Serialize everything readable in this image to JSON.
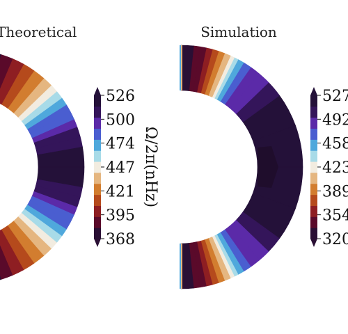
{
  "figure": {
    "cbar_label": "Ω/2π(nHz)"
  },
  "palette": [
    "#2a0f34",
    "#5a0a2a",
    "#8e1e22",
    "#b54a1c",
    "#d27d2f",
    "#e5b680",
    "#f2ece0",
    "#a8dbe8",
    "#4fa8dc",
    "#4a5ed0",
    "#5b2aa8",
    "#34155a",
    "#241139"
  ],
  "chart_data": [
    {
      "type": "heatmap",
      "title": "Theoretical",
      "subtype": "polar-contour",
      "r_range": [
        0.55,
        1.0
      ],
      "latitude_range_deg": [
        -90,
        90
      ],
      "bands": [
        {
          "lat_min": 0,
          "lat_max": 10,
          "value": 520
        },
        {
          "lat_min": 10,
          "lat_max": 15,
          "value": 513
        },
        {
          "lat_min": 15,
          "lat_max": 20,
          "value": 505
        },
        {
          "lat_min": 20,
          "lat_max": 24,
          "value": 497
        },
        {
          "lat_min": 24,
          "lat_max": 28,
          "value": 489
        },
        {
          "lat_min": 28,
          "lat_max": 32,
          "value": 480
        },
        {
          "lat_min": 32,
          "lat_max": 36,
          "value": 470
        },
        {
          "lat_min": 36,
          "lat_max": 40,
          "value": 460
        },
        {
          "lat_min": 40,
          "lat_max": 44,
          "value": 450
        },
        {
          "lat_min": 44,
          "lat_max": 49,
          "value": 438
        },
        {
          "lat_min": 49,
          "lat_max": 55,
          "value": 425
        },
        {
          "lat_min": 55,
          "lat_max": 61,
          "value": 412
        },
        {
          "lat_min": 61,
          "lat_max": 67,
          "value": 400
        },
        {
          "lat_min": 67,
          "lat_max": 73,
          "value": 388
        },
        {
          "lat_min": 73,
          "lat_max": 80,
          "value": 378
        },
        {
          "lat_min": 80,
          "lat_max": 90,
          "value": 370
        }
      ],
      "colorbar": {
        "vmin": 368,
        "vmax": 526,
        "ticks": [
          "368",
          "395",
          "421",
          "447",
          "474",
          "500",
          "526"
        ],
        "label": "Ω/2π(nHz)"
      }
    },
    {
      "type": "heatmap",
      "title": "Simulation",
      "subtype": "polar-contour",
      "r_range": [
        0.55,
        1.0
      ],
      "latitude_range_deg": [
        -90,
        90
      ],
      "outer_bands": [
        {
          "lat_min": 0,
          "lat_max": 20,
          "value": 527
        },
        {
          "lat_min": 20,
          "lat_max": 36,
          "value": 520
        },
        {
          "lat_min": 36,
          "lat_max": 44,
          "value": 508
        },
        {
          "lat_min": 44,
          "lat_max": 50,
          "value": 495
        },
        {
          "lat_min": 50,
          "lat_max": 55,
          "value": 482
        },
        {
          "lat_min": 55,
          "lat_max": 59,
          "value": 468
        },
        {
          "lat_min": 59,
          "lat_max": 62,
          "value": 455
        },
        {
          "lat_min": 62,
          "lat_max": 64,
          "value": 440
        },
        {
          "lat_min": 64,
          "lat_max": 66,
          "value": 425
        },
        {
          "lat_min": 66,
          "lat_max": 69,
          "value": 410
        },
        {
          "lat_min": 69,
          "lat_max": 72,
          "value": 395
        },
        {
          "lat_min": 72,
          "lat_max": 75,
          "value": 380
        },
        {
          "lat_min": 75,
          "lat_max": 78,
          "value": 365
        },
        {
          "lat_min": 78,
          "lat_max": 81,
          "value": 350
        },
        {
          "lat_min": 81,
          "lat_max": 84,
          "value": 338
        },
        {
          "lat_min": 84,
          "lat_max": 90,
          "value": 325
        }
      ],
      "colorbar": {
        "vmin": 320,
        "vmax": 527,
        "ticks": [
          "320",
          "354",
          "389",
          "423",
          "458",
          "492",
          "527"
        ],
        "label": ""
      }
    }
  ]
}
